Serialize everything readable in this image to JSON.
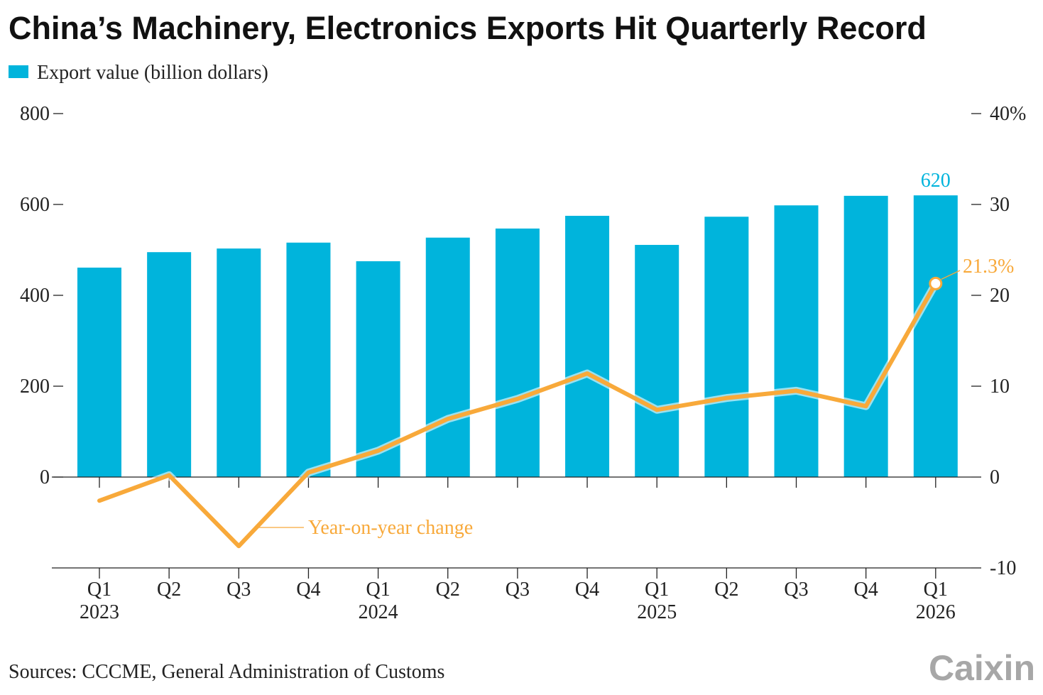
{
  "title": "China’s Machinery, Electronics Exports Hit Quarterly Record",
  "source": "Sources: CCCME, General Administration of Customs",
  "logo": "Caixin",
  "colors": {
    "bar": "#00b4dc",
    "line": "#f8a93a",
    "axis": "#222222"
  },
  "chart_data": {
    "type": "bar+line",
    "title": "China’s Machinery, Electronics Exports Hit Quarterly Record",
    "categories": [
      "Q1 2023",
      "Q2",
      "Q3",
      "Q4",
      "Q1 2024",
      "Q2",
      "Q3",
      "Q4",
      "Q1 2025",
      "Q2",
      "Q3",
      "Q4",
      "Q1 2026"
    ],
    "tick_labels": [
      [
        "Q1",
        "2023"
      ],
      [
        "Q2",
        ""
      ],
      [
        "Q3",
        ""
      ],
      [
        "Q4",
        ""
      ],
      [
        "Q1",
        "2024"
      ],
      [
        "Q2",
        ""
      ],
      [
        "Q3",
        ""
      ],
      [
        "Q4",
        ""
      ],
      [
        "Q1",
        "2025"
      ],
      [
        "Q2",
        ""
      ],
      [
        "Q3",
        ""
      ],
      [
        "Q4",
        ""
      ],
      [
        "Q1",
        "2026"
      ]
    ],
    "series": [
      {
        "name": "Export value (billion dollars)",
        "type": "bar",
        "axis": "left",
        "values": [
          461,
          495,
          503,
          516,
          475,
          527,
          547,
          575,
          511,
          573,
          598,
          619,
          620
        ]
      },
      {
        "name": "Year-on-year change",
        "type": "line",
        "axis": "right",
        "values": [
          -2.6,
          0.2,
          -7.6,
          0.5,
          2.9,
          6.4,
          8.6,
          11.4,
          7.4,
          8.7,
          9.5,
          7.8,
          21.3
        ]
      }
    ],
    "left_axis": {
      "ylim": [
        -200,
        800
      ],
      "ticks": [
        0,
        200,
        400,
        600,
        800
      ],
      "tick_labels": [
        "0",
        "200",
        "400",
        "600",
        "800"
      ]
    },
    "right_axis": {
      "ylim": [
        -10,
        40
      ],
      "ticks": [
        -10,
        0,
        10,
        20,
        30,
        40
      ],
      "tick_labels": [
        "-10",
        "0",
        "10",
        "20",
        "30",
        "40%"
      ]
    },
    "legend": {
      "position": "top-left",
      "label": "Export value (billion dollars)"
    },
    "annotations": {
      "bar_last": "620",
      "line_last": "21.3%",
      "line_label": "Year-on-year change"
    }
  }
}
